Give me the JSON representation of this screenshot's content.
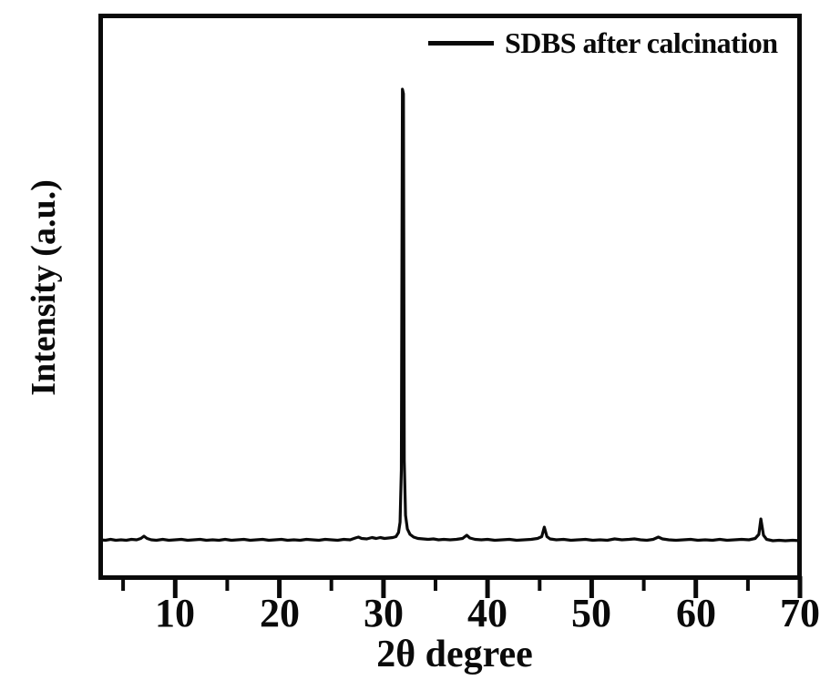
{
  "figure": {
    "background_color": "#ffffff",
    "ink_color": "#0a0a0a"
  },
  "chart_data": {
    "type": "line",
    "title": "",
    "xlabel": "2θ degree",
    "ylabel": "Intensity (a.u.)",
    "legend_position": "top-right-inside",
    "grid": false,
    "frame": "full-box",
    "xlim": [
      2.8,
      70
    ],
    "ylim": [
      0,
      1160
    ],
    "xticks_major": [
      10,
      20,
      30,
      40,
      50,
      60,
      70
    ],
    "xticks_minor": [
      5,
      15,
      25,
      35,
      45,
      55,
      65
    ],
    "yticks": [],
    "y_units": "arbitrary units",
    "series": [
      {
        "name": "SDBS after calcination",
        "color": "#0a0a0a",
        "main_peaks_2theta": [
          31.8,
          45.5,
          66.3
        ],
        "minor_features_2theta": [
          7.0,
          27.5,
          38.0,
          56.5
        ],
        "points": [
          [
            2.8,
            6
          ],
          [
            3.3,
            5
          ],
          [
            3.8,
            7
          ],
          [
            4.3,
            5
          ],
          [
            4.8,
            6
          ],
          [
            5.3,
            5
          ],
          [
            5.8,
            7
          ],
          [
            6.3,
            6
          ],
          [
            6.7,
            9
          ],
          [
            7.0,
            14
          ],
          [
            7.3,
            9
          ],
          [
            7.7,
            6
          ],
          [
            8.2,
            5
          ],
          [
            8.8,
            7
          ],
          [
            9.4,
            5
          ],
          [
            10,
            6
          ],
          [
            10.6,
            7
          ],
          [
            11.2,
            5
          ],
          [
            11.8,
            6
          ],
          [
            12.4,
            7
          ],
          [
            13,
            5
          ],
          [
            13.6,
            6
          ],
          [
            14.2,
            5
          ],
          [
            14.8,
            7
          ],
          [
            15.4,
            5
          ],
          [
            16,
            6
          ],
          [
            16.6,
            7
          ],
          [
            17.2,
            5
          ],
          [
            17.8,
            6
          ],
          [
            18.4,
            7
          ],
          [
            19,
            5
          ],
          [
            19.6,
            6
          ],
          [
            20.2,
            7
          ],
          [
            20.8,
            5
          ],
          [
            21.4,
            6
          ],
          [
            22,
            5
          ],
          [
            22.6,
            7
          ],
          [
            23.2,
            6
          ],
          [
            23.8,
            5
          ],
          [
            24.4,
            7
          ],
          [
            25,
            6
          ],
          [
            25.6,
            5
          ],
          [
            26.2,
            7
          ],
          [
            26.8,
            6
          ],
          [
            27.3,
            10
          ],
          [
            27.6,
            12
          ],
          [
            27.9,
            9
          ],
          [
            28.4,
            8
          ],
          [
            28.9,
            11
          ],
          [
            29.3,
            9
          ],
          [
            29.7,
            11
          ],
          [
            30.1,
            9
          ],
          [
            30.5,
            10
          ],
          [
            30.9,
            11
          ],
          [
            31.2,
            13
          ],
          [
            31.45,
            22
          ],
          [
            31.6,
            45
          ],
          [
            31.72,
            160
          ],
          [
            31.82,
            1000
          ],
          [
            31.92,
            990
          ],
          [
            32.0,
            180
          ],
          [
            32.12,
            60
          ],
          [
            32.3,
            30
          ],
          [
            32.55,
            18
          ],
          [
            32.9,
            12
          ],
          [
            33.3,
            9
          ],
          [
            33.8,
            8
          ],
          [
            34.3,
            7
          ],
          [
            34.8,
            8
          ],
          [
            35.3,
            6
          ],
          [
            35.8,
            7
          ],
          [
            36.4,
            6
          ],
          [
            37,
            7
          ],
          [
            37.6,
            9
          ],
          [
            38.0,
            16
          ],
          [
            38.3,
            10
          ],
          [
            38.8,
            7
          ],
          [
            39.4,
            6
          ],
          [
            40,
            7
          ],
          [
            40.7,
            5
          ],
          [
            41.4,
            6
          ],
          [
            42.1,
            7
          ],
          [
            42.8,
            5
          ],
          [
            43.5,
            6
          ],
          [
            44.2,
            7
          ],
          [
            44.8,
            9
          ],
          [
            45.2,
            13
          ],
          [
            45.45,
            34
          ],
          [
            45.7,
            13
          ],
          [
            46,
            8
          ],
          [
            46.6,
            6
          ],
          [
            47.3,
            7
          ],
          [
            48,
            5
          ],
          [
            48.7,
            6
          ],
          [
            49.4,
            7
          ],
          [
            50.1,
            5
          ],
          [
            50.8,
            6
          ],
          [
            51.5,
            5
          ],
          [
            52.2,
            8
          ],
          [
            52.9,
            6
          ],
          [
            53.6,
            7
          ],
          [
            54.1,
            8
          ],
          [
            54.7,
            6
          ],
          [
            55.3,
            5
          ],
          [
            55.9,
            7
          ],
          [
            56.4,
            12
          ],
          [
            56.8,
            8
          ],
          [
            57.4,
            6
          ],
          [
            58.1,
            5
          ],
          [
            58.8,
            6
          ],
          [
            59.5,
            7
          ],
          [
            60.2,
            5
          ],
          [
            60.9,
            6
          ],
          [
            61.6,
            5
          ],
          [
            62.3,
            7
          ],
          [
            63,
            5
          ],
          [
            63.7,
            6
          ],
          [
            64.4,
            7
          ],
          [
            65.1,
            6
          ],
          [
            65.7,
            9
          ],
          [
            66.05,
            18
          ],
          [
            66.25,
            52
          ],
          [
            66.5,
            16
          ],
          [
            66.8,
            7
          ],
          [
            67.4,
            4
          ],
          [
            68,
            5
          ],
          [
            68.6,
            4
          ],
          [
            69.3,
            5
          ],
          [
            70,
            4
          ]
        ]
      }
    ]
  }
}
